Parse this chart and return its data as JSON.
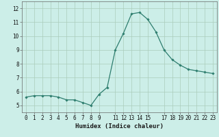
{
  "x": [
    0,
    1,
    2,
    3,
    4,
    5,
    6,
    7,
    8,
    9,
    10,
    11,
    12,
    13,
    14,
    15,
    16,
    17,
    18,
    19,
    20,
    21,
    22,
    23
  ],
  "y": [
    5.6,
    5.7,
    5.7,
    5.7,
    5.6,
    5.4,
    5.4,
    5.2,
    5.0,
    5.8,
    6.3,
    9.0,
    10.2,
    11.6,
    11.7,
    11.2,
    10.3,
    9.0,
    8.3,
    7.9,
    7.6,
    7.5,
    7.4,
    7.3
  ],
  "line_color": "#2d7d6e",
  "marker": "D",
  "marker_size": 1.8,
  "line_width": 0.9,
  "bg_color": "#cceee8",
  "grid_color": "#aaccbb",
  "xlabel": "Humidex (Indice chaleur)",
  "xlabel_fontsize": 6.5,
  "tick_fontsize": 5.5,
  "xlim": [
    -0.5,
    23.5
  ],
  "ylim": [
    4.5,
    12.5
  ],
  "yticks": [
    5,
    6,
    7,
    8,
    9,
    10,
    11,
    12
  ],
  "xticks": [
    0,
    1,
    2,
    3,
    4,
    5,
    6,
    7,
    8,
    9,
    11,
    12,
    13,
    14,
    15,
    17,
    18,
    19,
    20,
    21,
    22,
    23
  ]
}
